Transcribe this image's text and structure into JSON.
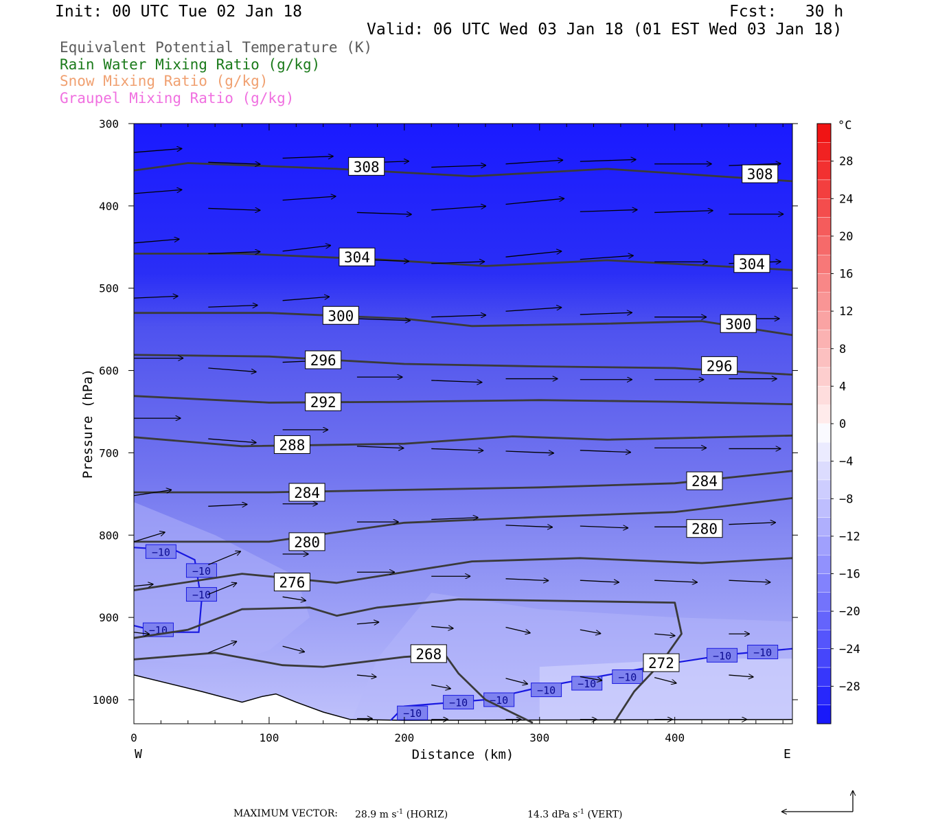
{
  "header": {
    "init": "Init: 00 UTC Tue 02 Jan 18",
    "fcst": "Fcst:   30 h",
    "valid": "Valid: 06 UTC Wed 03 Jan 18 (01 EST Wed 03 Jan 18)"
  },
  "legend": [
    {
      "label": "Equivalent Potential Temperature (K)",
      "color": "#5a5a5a"
    },
    {
      "label": "Rain Water Mixing Ratio (g/kg)",
      "color": "#1a7a1a"
    },
    {
      "label": "Snow Mixing Ratio (g/kg)",
      "color": "#f0a070"
    },
    {
      "label": "Graupel Mixing Ratio (g/kg)",
      "color": "#f070e0"
    }
  ],
  "chart_data": {
    "type": "heatmap",
    "xlabel": "Distance (km)",
    "ylabel": "Pressure (hPa)",
    "xlim": [
      0,
      487
    ],
    "ylim": [
      1030,
      300
    ],
    "x_ticks": [
      "0",
      "100",
      "200",
      "300",
      "400"
    ],
    "y_ticks": [
      "300",
      "400",
      "500",
      "600",
      "700",
      "800",
      "900",
      "1000"
    ],
    "x_end_labels": {
      "left": "W",
      "right": "E"
    },
    "colorbar": {
      "unit": "°C",
      "ticks": [
        "28",
        "24",
        "20",
        "16",
        "12",
        "8",
        "4",
        "0",
        "-4",
        "-8",
        "-12",
        "-16",
        "-20",
        "-24",
        "-28"
      ],
      "range": [
        -32,
        32
      ]
    },
    "theta_e_contours": [
      {
        "label": "308",
        "points": [
          [
            0,
            357
          ],
          [
            40,
            348
          ],
          [
            150,
            355
          ],
          [
            250,
            364
          ],
          [
            350,
            355
          ],
          [
            487,
            370
          ]
        ]
      },
      {
        "label": "304",
        "points": [
          [
            0,
            458
          ],
          [
            80,
            458
          ],
          [
            180,
            465
          ],
          [
            260,
            473
          ],
          [
            350,
            466
          ],
          [
            487,
            478
          ]
        ]
      },
      {
        "label": "300",
        "points": [
          [
            0,
            530
          ],
          [
            100,
            530
          ],
          [
            200,
            537
          ],
          [
            250,
            546
          ],
          [
            350,
            543
          ],
          [
            420,
            540
          ],
          [
            487,
            557
          ]
        ]
      },
      {
        "label": "296",
        "points": [
          [
            0,
            581
          ],
          [
            100,
            583
          ],
          [
            200,
            592
          ],
          [
            300,
            595
          ],
          [
            400,
            597
          ],
          [
            487,
            605
          ]
        ]
      },
      {
        "label": "292",
        "points": [
          [
            0,
            631
          ],
          [
            100,
            639
          ],
          [
            200,
            638
          ],
          [
            300,
            636
          ],
          [
            400,
            638
          ],
          [
            487,
            641
          ]
        ]
      },
      {
        "label": "288",
        "points": [
          [
            0,
            681
          ],
          [
            80,
            692
          ],
          [
            200,
            689
          ],
          [
            280,
            680
          ],
          [
            350,
            684
          ],
          [
            487,
            679
          ]
        ]
      },
      {
        "label": "284",
        "points": [
          [
            0,
            748
          ],
          [
            100,
            748
          ],
          [
            200,
            745
          ],
          [
            300,
            742
          ],
          [
            400,
            737
          ],
          [
            487,
            722
          ]
        ]
      },
      {
        "label": "280",
        "points": [
          [
            0,
            808
          ],
          [
            100,
            808
          ],
          [
            200,
            785
          ],
          [
            300,
            778
          ],
          [
            400,
            772
          ],
          [
            487,
            755
          ]
        ]
      },
      {
        "label": "276",
        "points": [
          [
            0,
            867
          ],
          [
            80,
            847
          ],
          [
            150,
            858
          ],
          [
            250,
            832
          ],
          [
            330,
            828
          ],
          [
            420,
            834
          ],
          [
            487,
            828
          ]
        ]
      },
      {
        "label": "272",
        "points": [
          [
            0,
            925
          ],
          [
            40,
            915
          ],
          [
            80,
            890
          ],
          [
            130,
            888
          ],
          [
            150,
            898
          ],
          [
            180,
            888
          ],
          [
            240,
            878
          ],
          [
            400,
            882
          ],
          [
            405,
            920
          ],
          [
            390,
            955
          ],
          [
            370,
            990
          ],
          [
            355,
            1028
          ]
        ]
      },
      {
        "label": "268",
        "points": [
          [
            0,
            951
          ],
          [
            60,
            943
          ],
          [
            110,
            958
          ],
          [
            140,
            960
          ],
          [
            200,
            948
          ],
          [
            230,
            945
          ],
          [
            240,
            968
          ],
          [
            260,
            1000
          ],
          [
            295,
            1028
          ]
        ]
      }
    ],
    "isotherm_minus10": [
      [
        [
          0,
          815
        ],
        [
          30,
          818
        ],
        [
          45,
          830
        ],
        [
          50,
          880
        ],
        [
          48,
          918
        ],
        [
          20,
          918
        ],
        [
          0,
          910
        ]
      ],
      [
        [
          190,
          1025
        ],
        [
          200,
          1008
        ],
        [
          260,
          1000
        ],
        [
          300,
          985
        ],
        [
          350,
          970
        ],
        [
          400,
          955
        ],
        [
          440,
          945
        ],
        [
          487,
          938
        ]
      ]
    ],
    "isotherm_label": "−10",
    "wind_vectors": [
      {
        "x": 0,
        "p": 335,
        "u": 37,
        "v": 0.2
      },
      {
        "x": 55,
        "p": 347,
        "u": 40,
        "v": -0.1
      },
      {
        "x": 110,
        "p": 342,
        "u": 39,
        "v": 0.1
      },
      {
        "x": 165,
        "p": 348,
        "u": 40,
        "v": 0.1
      },
      {
        "x": 220,
        "p": 353,
        "u": 42,
        "v": 0.1
      },
      {
        "x": 275,
        "p": 349,
        "u": 44,
        "v": 0.2
      },
      {
        "x": 330,
        "p": 346,
        "u": 43,
        "v": 0.1
      },
      {
        "x": 385,
        "p": 349,
        "u": 44,
        "v": 0
      },
      {
        "x": 440,
        "p": 351,
        "u": 40,
        "v": 0.1
      },
      {
        "x": 0,
        "p": 385,
        "u": 37,
        "v": 0.2
      },
      {
        "x": 55,
        "p": 403,
        "u": 40,
        "v": -0.1
      },
      {
        "x": 110,
        "p": 393,
        "u": 41,
        "v": 0.2
      },
      {
        "x": 165,
        "p": 408,
        "u": 42,
        "v": -0.1
      },
      {
        "x": 220,
        "p": 405,
        "u": 42,
        "v": 0.2
      },
      {
        "x": 275,
        "p": 398,
        "u": 45,
        "v": 0.3
      },
      {
        "x": 330,
        "p": 407,
        "u": 44,
        "v": 0.1
      },
      {
        "x": 385,
        "p": 408,
        "u": 45,
        "v": 0.1
      },
      {
        "x": 440,
        "p": 410,
        "u": 42,
        "v": 0
      },
      {
        "x": 0,
        "p": 445,
        "u": 35,
        "v": 0.2
      },
      {
        "x": 55,
        "p": 458,
        "u": 40,
        "v": 0.1
      },
      {
        "x": 110,
        "p": 455,
        "u": 37,
        "v": 0.3
      },
      {
        "x": 165,
        "p": 465,
        "u": 40,
        "v": -0.1
      },
      {
        "x": 220,
        "p": 470,
        "u": 41,
        "v": 0.1
      },
      {
        "x": 275,
        "p": 462,
        "u": 43,
        "v": 0.3
      },
      {
        "x": 330,
        "p": 465,
        "u": 41,
        "v": 0.2
      },
      {
        "x": 385,
        "p": 468,
        "u": 41,
        "v": 0
      },
      {
        "x": 440,
        "p": 470,
        "u": 40,
        "v": 0.1
      },
      {
        "x": 0,
        "p": 512,
        "u": 34,
        "v": 0.1
      },
      {
        "x": 55,
        "p": 523,
        "u": 38,
        "v": 0.1
      },
      {
        "x": 110,
        "p": 515,
        "u": 36,
        "v": 0.2
      },
      {
        "x": 165,
        "p": 537,
        "u": 41,
        "v": -0.1
      },
      {
        "x": 220,
        "p": 535,
        "u": 42,
        "v": 0.1
      },
      {
        "x": 275,
        "p": 528,
        "u": 43,
        "v": 0.2
      },
      {
        "x": 330,
        "p": 532,
        "u": 40,
        "v": 0.1
      },
      {
        "x": 385,
        "p": 535,
        "u": 40,
        "v": 0
      },
      {
        "x": 440,
        "p": 537,
        "u": 39,
        "v": 0
      },
      {
        "x": 0,
        "p": 585,
        "u": 38,
        "v": 0
      },
      {
        "x": 55,
        "p": 597,
        "u": 37,
        "v": -0.2
      },
      {
        "x": 110,
        "p": 590,
        "u": 33,
        "v": 0.1
      },
      {
        "x": 165,
        "p": 608,
        "u": 35,
        "v": 0
      },
      {
        "x": 220,
        "p": 612,
        "u": 39,
        "v": -0.1
      },
      {
        "x": 275,
        "p": 610,
        "u": 40,
        "v": 0
      },
      {
        "x": 330,
        "p": 611,
        "u": 40,
        "v": 0
      },
      {
        "x": 385,
        "p": 611,
        "u": 38,
        "v": 0
      },
      {
        "x": 440,
        "p": 610,
        "u": 37,
        "v": 0
      },
      {
        "x": 0,
        "p": 658,
        "u": 36,
        "v": 0
      },
      {
        "x": 55,
        "p": 683,
        "u": 37,
        "v": -0.2
      },
      {
        "x": 110,
        "p": 672,
        "u": 35,
        "v": 0
      },
      {
        "x": 165,
        "p": 692,
        "u": 36,
        "v": -0.1
      },
      {
        "x": 220,
        "p": 695,
        "u": 40,
        "v": -0.1
      },
      {
        "x": 275,
        "p": 698,
        "u": 37,
        "v": -0.1
      },
      {
        "x": 330,
        "p": 697,
        "u": 39,
        "v": -0.1
      },
      {
        "x": 385,
        "p": 694,
        "u": 40,
        "v": 0
      },
      {
        "x": 440,
        "p": 695,
        "u": 40,
        "v": 0
      },
      {
        "x": 0,
        "p": 752,
        "u": 29,
        "v": 0.3
      },
      {
        "x": 55,
        "p": 765,
        "u": 30,
        "v": 0.1
      },
      {
        "x": 110,
        "p": 762,
        "u": 27,
        "v": 0
      },
      {
        "x": 165,
        "p": 784,
        "u": 32,
        "v": 0
      },
      {
        "x": 220,
        "p": 781,
        "u": 36,
        "v": 0.1
      },
      {
        "x": 275,
        "p": 788,
        "u": 36,
        "v": -0.1
      },
      {
        "x": 330,
        "p": 789,
        "u": 37,
        "v": -0.1
      },
      {
        "x": 385,
        "p": 790,
        "u": 38,
        "v": 0
      },
      {
        "x": 440,
        "p": 787,
        "u": 36,
        "v": 0.1
      },
      {
        "x": 0,
        "p": 808,
        "u": 24,
        "v": 0.5
      },
      {
        "x": 55,
        "p": 836,
        "u": 25,
        "v": 0.7
      },
      {
        "x": 110,
        "p": 823,
        "u": 20,
        "v": 0
      },
      {
        "x": 165,
        "p": 845,
        "u": 29,
        "v": 0
      },
      {
        "x": 220,
        "p": 850,
        "u": 30,
        "v": 0
      },
      {
        "x": 275,
        "p": 853,
        "u": 33,
        "v": -0.1
      },
      {
        "x": 330,
        "p": 855,
        "u": 30,
        "v": -0.1
      },
      {
        "x": 385,
        "p": 855,
        "u": 33,
        "v": -0.1
      },
      {
        "x": 440,
        "p": 855,
        "u": 32,
        "v": -0.1
      },
      {
        "x": 0,
        "p": 862,
        "u": 15,
        "v": 0.1
      },
      {
        "x": 55,
        "p": 872,
        "u": 22,
        "v": 0.6
      },
      {
        "x": 110,
        "p": 875,
        "u": 18,
        "v": -0.2
      },
      {
        "x": 165,
        "p": 908,
        "u": 17,
        "v": 0.1
      },
      {
        "x": 220,
        "p": 911,
        "u": 17,
        "v": -0.1
      },
      {
        "x": 275,
        "p": 912,
        "u": 19,
        "v": -0.3
      },
      {
        "x": 330,
        "p": 915,
        "u": 16,
        "v": -0.2
      },
      {
        "x": 385,
        "p": 920,
        "u": 16,
        "v": -0.1
      },
      {
        "x": 440,
        "p": 920,
        "u": 16,
        "v": 0
      },
      {
        "x": 0,
        "p": 918,
        "u": 12,
        "v": -0.1
      },
      {
        "x": 55,
        "p": 943,
        "u": 22,
        "v": 0.6
      },
      {
        "x": 110,
        "p": 935,
        "u": 17,
        "v": -0.3
      },
      {
        "x": 165,
        "p": 970,
        "u": 15,
        "v": -0.1
      },
      {
        "x": 220,
        "p": 982,
        "u": 15,
        "v": -0.2
      },
      {
        "x": 275,
        "p": 974,
        "u": 17,
        "v": -0.3
      },
      {
        "x": 330,
        "p": 972,
        "u": 17,
        "v": -0.2
      },
      {
        "x": 385,
        "p": 973,
        "u": 17,
        "v": -0.3
      },
      {
        "x": 440,
        "p": 970,
        "u": 19,
        "v": -0.1
      },
      {
        "x": 165,
        "p": 1023,
        "u": 12,
        "v": 0
      },
      {
        "x": 220,
        "p": 1024,
        "u": 13,
        "v": 0
      },
      {
        "x": 275,
        "p": 1024,
        "u": 12,
        "v": 0
      },
      {
        "x": 330,
        "p": 1024,
        "u": 13,
        "v": 0
      },
      {
        "x": 385,
        "p": 1024,
        "u": 14,
        "v": 0
      },
      {
        "x": 440,
        "p": 1024,
        "u": 14,
        "v": 0
      }
    ],
    "terrain": [
      [
        0,
        970
      ],
      [
        50,
        990
      ],
      [
        80,
        1003
      ],
      [
        95,
        996
      ],
      [
        105,
        993
      ],
      [
        120,
        1003
      ],
      [
        140,
        1015
      ],
      [
        160,
        1024
      ],
      [
        200,
        1025
      ],
      [
        487,
        1024
      ]
    ]
  },
  "footer": {
    "max_vector_label": "MAXIMUM VECTOR:",
    "horiz_value": "28.9 m s",
    "horiz_exp": "-1",
    "horiz_unit": " (HORIZ)",
    "vert_value": "14.3 dPa s",
    "vert_exp": "-1",
    "vert_unit": " (VERT)"
  }
}
